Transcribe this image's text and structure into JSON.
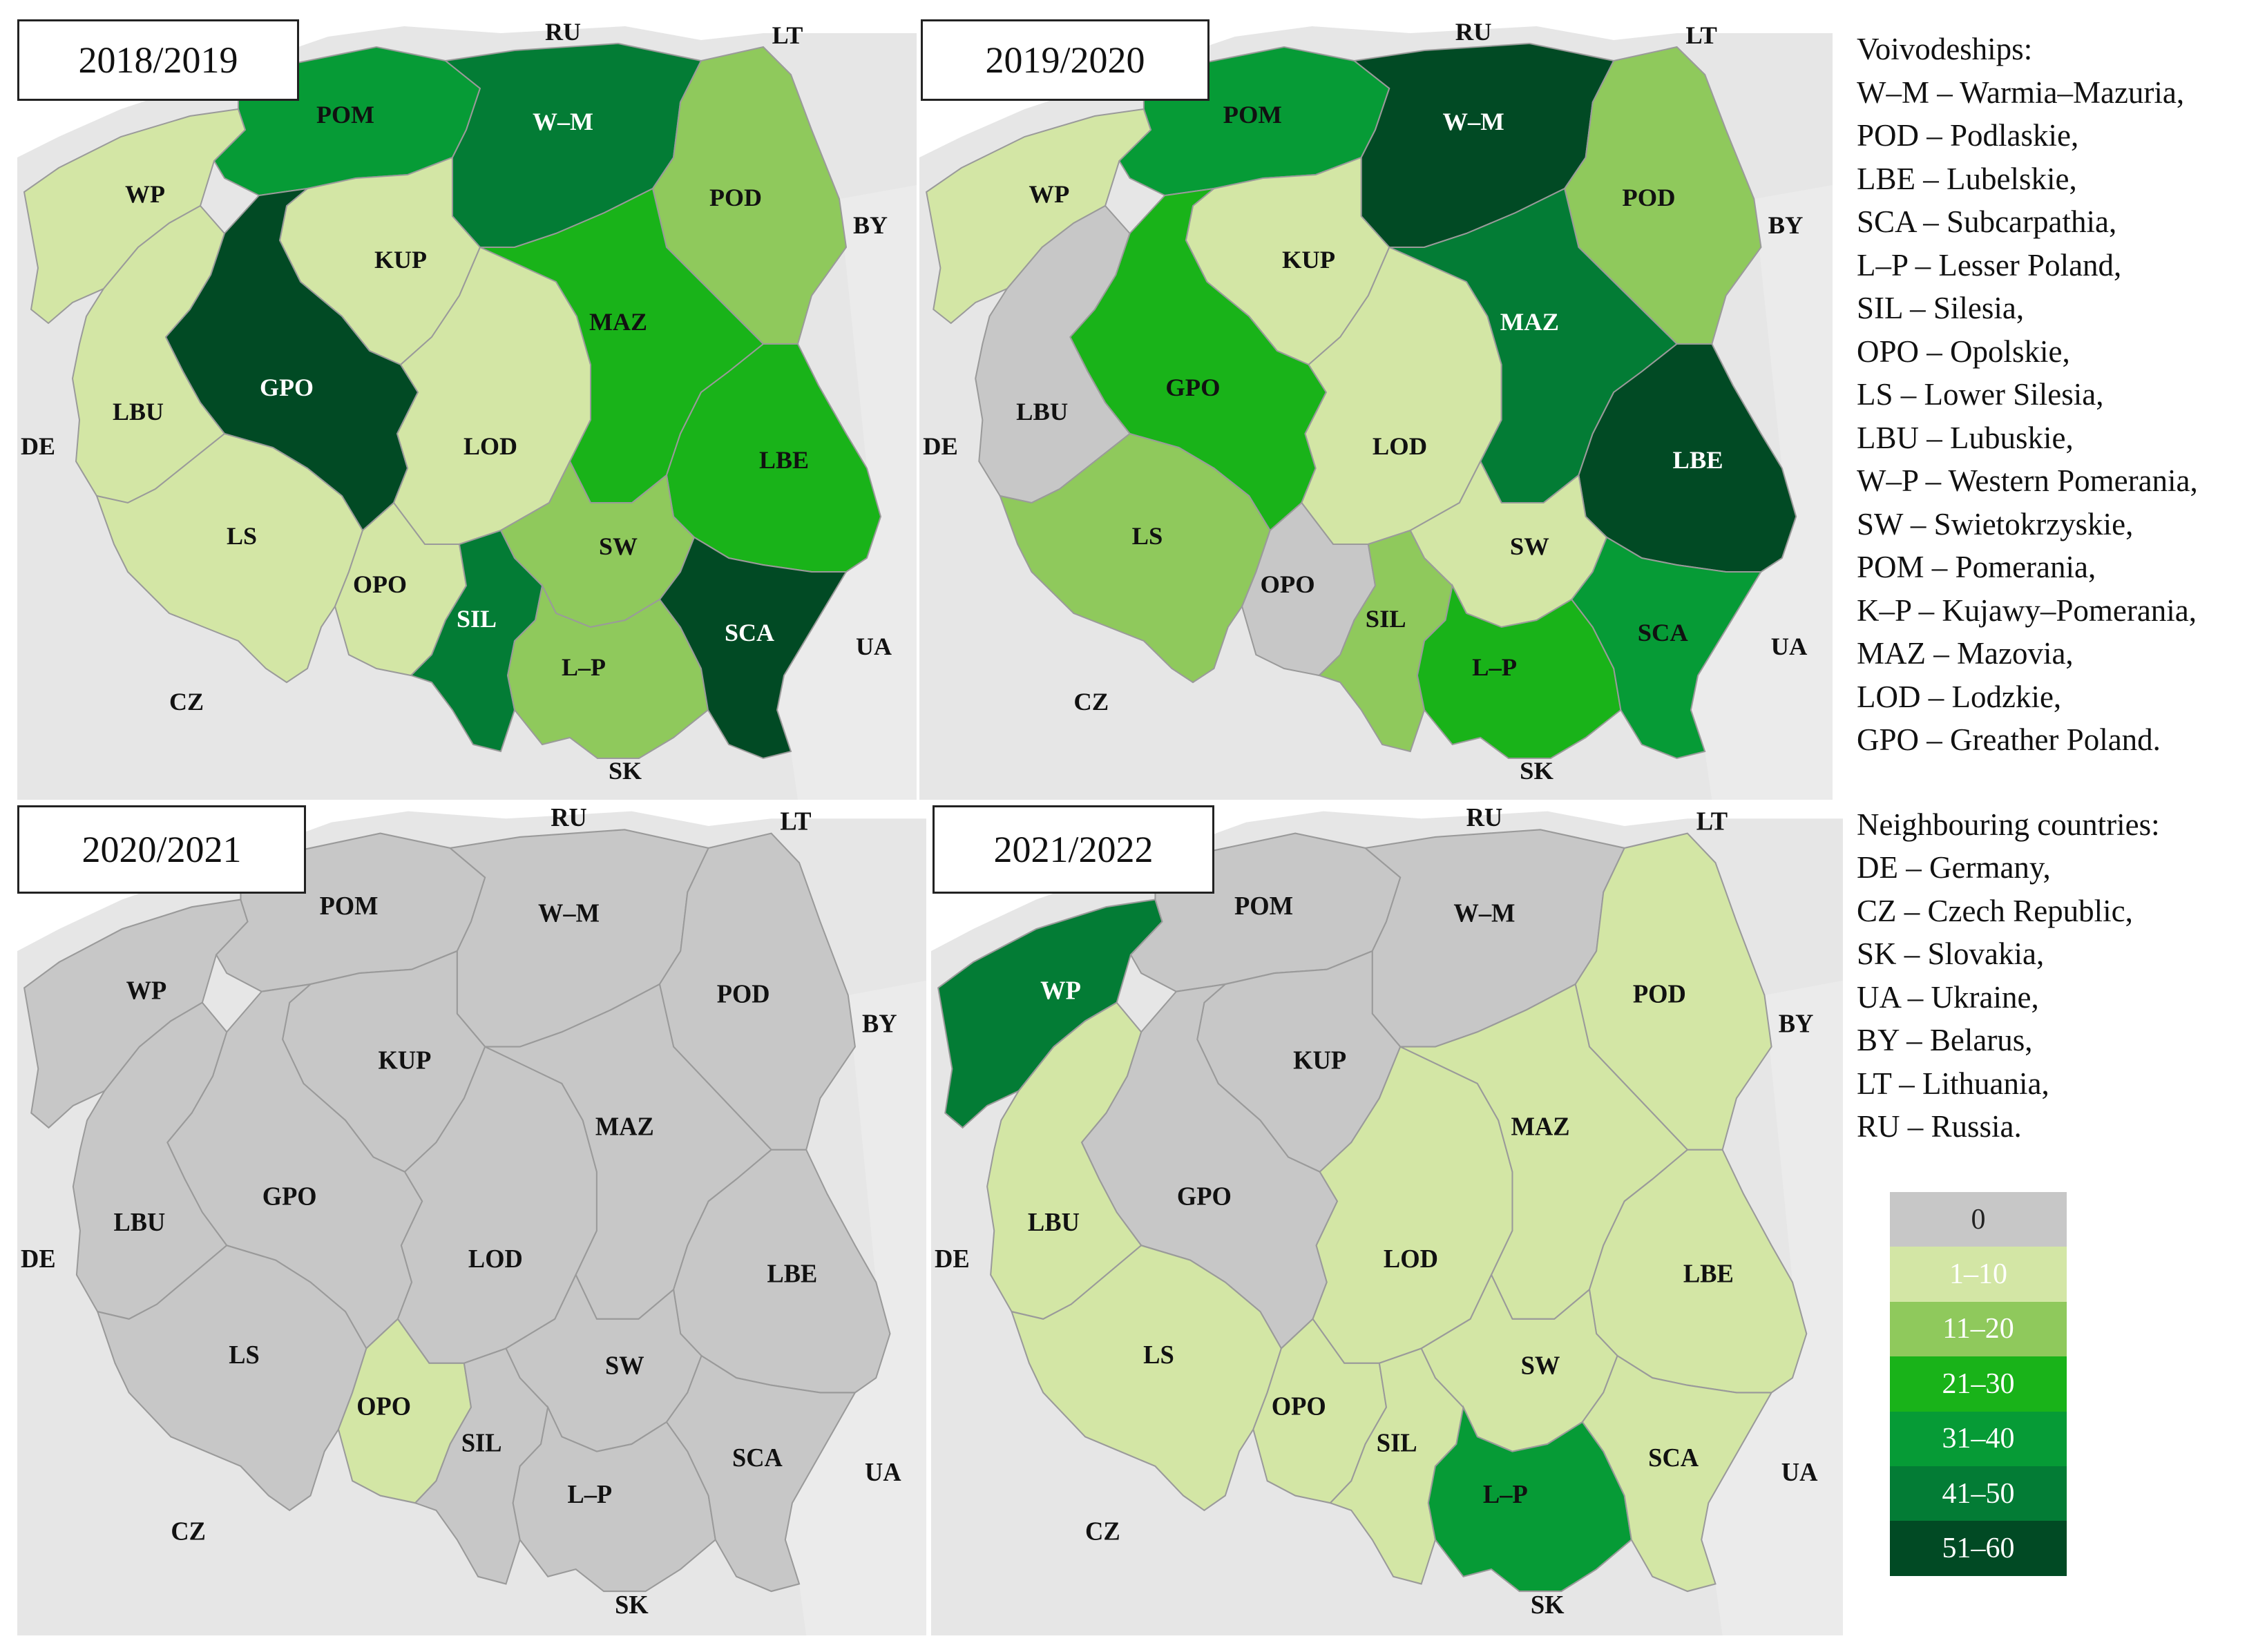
{
  "colors": {
    "bg": "#e6e6e6",
    "none": "#c7c7c7",
    "c1_10": "#d3e6a5",
    "c11_20": "#8fc95c",
    "c21_30": "#19b319",
    "c31_40": "#069b36",
    "c41_50": "#037c35",
    "c51_60": "#014a24",
    "border": "#9a9a9a"
  },
  "panels": [
    {
      "season": "2018/2019",
      "fills": {
        "WP": "c1_10",
        "POM": "c31_40",
        "W–M": "c41_50",
        "POD": "c11_20",
        "KUP": "c1_10",
        "GPO": "c51_60",
        "LBU": "c1_10",
        "LOD": "c1_10",
        "MAZ": "c21_30",
        "LBE": "c21_30",
        "LS": "c1_10",
        "OPO": "c1_10",
        "SIL": "c41_50",
        "SW": "c11_20",
        "L–P": "c11_20",
        "SCA": "c51_60"
      }
    },
    {
      "season": "2019/2020",
      "fills": {
        "WP": "c1_10",
        "POM": "c31_40",
        "W–M": "c51_60",
        "POD": "c11_20",
        "KUP": "c1_10",
        "GPO": "c21_30",
        "LBU": "none",
        "LOD": "c1_10",
        "MAZ": "c41_50",
        "LBE": "c51_60",
        "LS": "c11_20",
        "OPO": "none",
        "SIL": "c11_20",
        "SW": "c1_10",
        "L–P": "c21_30",
        "SCA": "c31_40"
      }
    },
    {
      "season": "2020/2021",
      "fills": {
        "WP": "none",
        "POM": "none",
        "W–M": "none",
        "POD": "none",
        "KUP": "none",
        "GPO": "none",
        "LBU": "none",
        "LOD": "none",
        "MAZ": "none",
        "LBE": "none",
        "LS": "none",
        "OPO": "c1_10",
        "SIL": "none",
        "SW": "none",
        "L–P": "none",
        "SCA": "none"
      }
    },
    {
      "season": "2021/2022",
      "fills": {
        "WP": "c41_50",
        "POM": "none",
        "W–M": "none",
        "POD": "c1_10",
        "KUP": "none",
        "GPO": "none",
        "LBU": "c1_10",
        "LOD": "c1_10",
        "MAZ": "c1_10",
        "LBE": "c1_10",
        "LS": "c1_10",
        "OPO": "c1_10",
        "SIL": "c1_10",
        "SW": "c1_10",
        "L–P": "c31_40",
        "SCA": "c1_10"
      }
    }
  ],
  "glossary": {
    "voivodeships_title": "Voivodeships:",
    "voivodeships": [
      "W–M – Warmia–Mazuria,",
      "POD – Podlaskie,",
      "LBE – Lubelskie,",
      "SCA – Subcarpathia,",
      "L–P – Lesser Poland,",
      "SIL – Silesia,",
      "OPO – Opolskie,",
      "LS – Lower Silesia,",
      "LBU – Lubuskie,",
      "W–P – Western Pomerania,",
      "SW – Swietokrzyskie,",
      "POM – Pomerania,",
      "K–P – Kujawy–Pomerania,",
      "MAZ – Mazovia,",
      "LOD – Lodzkie,",
      "GPO – Greather Poland."
    ],
    "countries_title": "Neighbouring countries:",
    "countries": [
      "DE – Germany,",
      "CZ – Czech Republic,",
      "SK – Slovakia,",
      "UA – Ukraine,",
      "BY – Belarus,",
      "LT – Lithuania,",
      "RU – Russia."
    ]
  },
  "legend": [
    {
      "label": "0",
      "color": "none"
    },
    {
      "label": "1–10",
      "color": "c1_10"
    },
    {
      "label": "11–20",
      "color": "c11_20"
    },
    {
      "label": "21–30",
      "color": "c21_30"
    },
    {
      "label": "31–40",
      "color": "c31_40"
    },
    {
      "label": "41–50",
      "color": "c41_50"
    },
    {
      "label": "51–60",
      "color": "c51_60"
    }
  ]
}
